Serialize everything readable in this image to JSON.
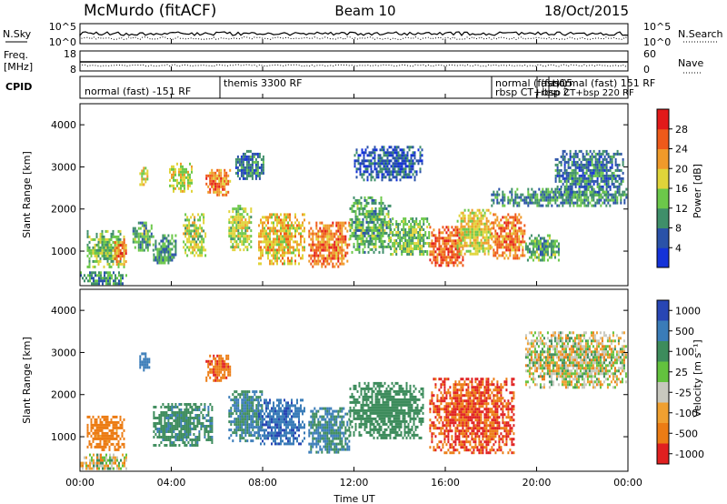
{
  "header": {
    "station": "McMurdo (fitACF)",
    "beam": "Beam 10",
    "date": "18/Oct/2015"
  },
  "panels": {
    "nsky": {
      "left_label": "N.Sky",
      "right_label": "N.Search",
      "left_ticks": [
        "10^5",
        "10^0"
      ],
      "right_ticks": [
        "10^5",
        "10^0"
      ]
    },
    "freq": {
      "left_label_1": "Freq.",
      "left_label_2": "[MHz]",
      "left_ticks": [
        "18",
        "8"
      ],
      "right_label": "Nave",
      "right_ticks": [
        "60",
        "0"
      ]
    },
    "cpid": {
      "label": "CPID",
      "segments": [
        "normal (fast) -151 RF",
        "themis 3300 RF",
        "normal (fast)15",
        "rbsp CT+bsp 2",
        "(fast)",
        "normal (fast) 151 RF",
        "rbsp CT+bsp 220 RF",
        "rbsp 220 RF"
      ]
    },
    "power": {
      "ylabel": "Slant Range [km]",
      "yticks": [
        "1000",
        "2000",
        "3000",
        "4000"
      ],
      "colorbar_label": "Power [dB]",
      "colorbar_ticks": [
        "4",
        "8",
        "12",
        "16",
        "20",
        "24",
        "28"
      ]
    },
    "velocity": {
      "ylabel": "Slant Range [km]",
      "yticks": [
        "1000",
        "2000",
        "3000",
        "4000"
      ],
      "colorbar_label": "Velocity [m s⁻¹]",
      "colorbar_ticks": [
        "1000",
        "500",
        "100",
        "25",
        "-25",
        "-100",
        "-500",
        "-1000"
      ]
    }
  },
  "xaxis": {
    "label": "Time UT",
    "ticks": [
      "00:00",
      "04:00",
      "08:00",
      "12:00",
      "16:00",
      "20:00",
      "00:00"
    ]
  },
  "colors": {
    "power_scale": [
      "#1432d8",
      "#2a52a8",
      "#3f8f6a",
      "#6cc84a",
      "#e0d43a",
      "#f09a2a",
      "#ee5a1a",
      "#e21a1a"
    ],
    "velocity_scale": [
      "#2846b4",
      "#3a7cb8",
      "#3d8c5c",
      "#63c23e",
      "#c8c8be",
      "#f0a030",
      "#ec7c14",
      "#e02020"
    ]
  },
  "chart_data": [
    {
      "type": "heatmap",
      "title": "Power",
      "x_range_hours": [
        0,
        24
      ],
      "y_range_km": [
        180,
        4500
      ],
      "ylabel": "Slant Range [km]",
      "colorbar": {
        "label": "Power [dB]",
        "range": [
          0,
          32
        ],
        "ticks": [
          4,
          8,
          12,
          16,
          20,
          24,
          28
        ]
      },
      "clusters": [
        {
          "t": [
            0.0,
            2.0
          ],
          "r": [
            220,
            520
          ],
          "v": 10
        },
        {
          "t": [
            0.3,
            1.9
          ],
          "r": [
            600,
            1500
          ],
          "v": 14
        },
        {
          "t": [
            1.5,
            2.0
          ],
          "r": [
            700,
            1300
          ],
          "v": 24
        },
        {
          "t": [
            2.3,
            3.2
          ],
          "r": [
            1000,
            1700
          ],
          "v": 12
        },
        {
          "t": [
            2.6,
            3.0
          ],
          "r": [
            2600,
            3000
          ],
          "v": 18
        },
        {
          "t": [
            3.2,
            4.2
          ],
          "r": [
            700,
            1400
          ],
          "v": 10
        },
        {
          "t": [
            3.9,
            4.9
          ],
          "r": [
            2400,
            3100
          ],
          "v": 18
        },
        {
          "t": [
            4.5,
            5.5
          ],
          "r": [
            900,
            1900
          ],
          "v": 16
        },
        {
          "t": [
            5.5,
            6.6
          ],
          "r": [
            2350,
            2950
          ],
          "v": 24
        },
        {
          "t": [
            6.5,
            7.5
          ],
          "r": [
            1000,
            2100
          ],
          "v": 16
        },
        {
          "t": [
            6.8,
            8.0
          ],
          "r": [
            2700,
            3400
          ],
          "v": 8
        },
        {
          "t": [
            7.8,
            9.8
          ],
          "r": [
            700,
            1900
          ],
          "v": 20
        },
        {
          "t": [
            10.0,
            11.8
          ],
          "r": [
            600,
            1700
          ],
          "v": 24
        },
        {
          "t": [
            11.8,
            13.6
          ],
          "r": [
            1000,
            2300
          ],
          "v": 12
        },
        {
          "t": [
            12.0,
            15.0
          ],
          "r": [
            2700,
            3500
          ],
          "v": 6
        },
        {
          "t": [
            13.5,
            15.3
          ],
          "r": [
            900,
            1800
          ],
          "v": 14
        },
        {
          "t": [
            15.3,
            16.8
          ],
          "r": [
            650,
            1600
          ],
          "v": 26
        },
        {
          "t": [
            16.5,
            18.0
          ],
          "r": [
            900,
            2000
          ],
          "v": 18
        },
        {
          "t": [
            18.0,
            19.5
          ],
          "r": [
            800,
            1900
          ],
          "v": 24
        },
        {
          "t": [
            19.5,
            21.0
          ],
          "r": [
            800,
            1400
          ],
          "v": 12
        },
        {
          "t": [
            20.8,
            23.8
          ],
          "r": [
            2300,
            3400
          ],
          "v": 8
        },
        {
          "t": [
            18.0,
            23.9
          ],
          "r": [
            2100,
            2500
          ],
          "v": 10
        }
      ]
    },
    {
      "type": "heatmap",
      "title": "Velocity",
      "x_range_hours": [
        0,
        24
      ],
      "y_range_km": [
        180,
        4500
      ],
      "ylabel": "Slant Range [km]",
      "colorbar": {
        "label": "Velocity [m s⁻¹]",
        "ticks": [
          1000,
          500,
          100,
          25,
          -25,
          -100,
          -500,
          -1000
        ]
      },
      "clusters": [
        {
          "t": [
            0.0,
            2.0
          ],
          "r": [
            220,
            600
          ],
          "v": 0
        },
        {
          "t": [
            0.3,
            1.9
          ],
          "r": [
            700,
            1500
          ],
          "v": -150
        },
        {
          "t": [
            2.6,
            3.0
          ],
          "r": [
            2600,
            3000
          ],
          "v": 400
        },
        {
          "t": [
            3.2,
            5.8
          ],
          "r": [
            800,
            1800
          ],
          "v": 250
        },
        {
          "t": [
            5.5,
            6.6
          ],
          "r": [
            2350,
            2950
          ],
          "v": -250
        },
        {
          "t": [
            6.5,
            8.0
          ],
          "r": [
            900,
            2100
          ],
          "v": 300
        },
        {
          "t": [
            7.8,
            9.8
          ],
          "r": [
            800,
            1900
          ],
          "v": 700
        },
        {
          "t": [
            10.0,
            11.8
          ],
          "r": [
            600,
            1700
          ],
          "v": 300
        },
        {
          "t": [
            11.8,
            15.0
          ],
          "r": [
            1000,
            2300
          ],
          "v": 200
        },
        {
          "t": [
            15.3,
            19.0
          ],
          "r": [
            650,
            2400
          ],
          "v": -300
        },
        {
          "t": [
            19.5,
            23.9
          ],
          "r": [
            2200,
            3500
          ],
          "v": 0
        }
      ]
    }
  ]
}
